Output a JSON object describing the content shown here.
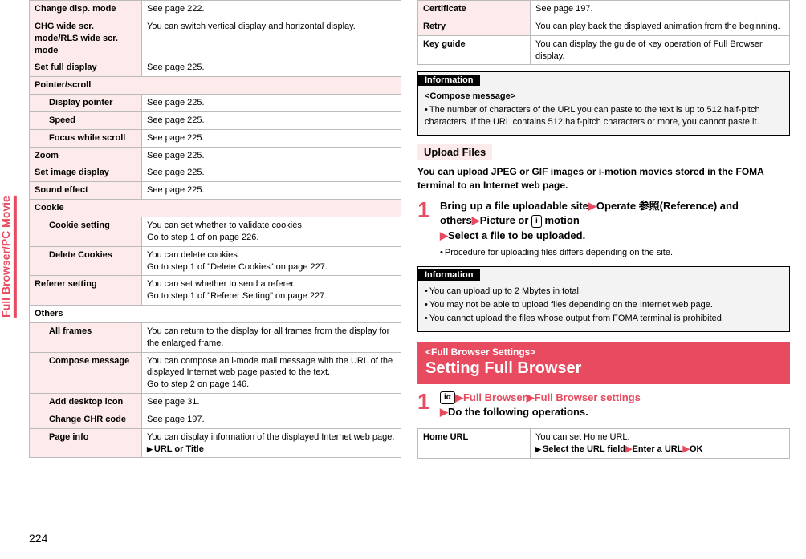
{
  "side_tab": "Full Browser/PC Movie",
  "page_number": "224",
  "left": {
    "rows": [
      {
        "label": "Change disp. mode",
        "value": "See page 222."
      },
      {
        "label": "CHG wide scr. mode/RLS wide scr. mode",
        "value": "You can switch vertical display and horizontal display."
      },
      {
        "label": "Set full display",
        "value": "See page 225."
      },
      {
        "section": "Pointer/scroll"
      },
      {
        "label": "Display pointer",
        "indent": true,
        "value": "See page 225."
      },
      {
        "label": "Speed",
        "indent": true,
        "value": "See page 225."
      },
      {
        "label": "Focus while scroll",
        "indent": true,
        "value": "See page 225."
      },
      {
        "label": "Zoom",
        "value": "See page 225."
      },
      {
        "label": "Set image display",
        "value": "See page 225."
      },
      {
        "label": "Sound effect",
        "value": "See page 225."
      },
      {
        "section": "Cookie"
      },
      {
        "label": "Cookie setting",
        "indent": true,
        "value": "You can set whether to validate cookies.\nGo to step 1 of on page 226."
      },
      {
        "label": "Delete Cookies",
        "indent": true,
        "value": "You can delete cookies.\nGo to step 1 of \"Delete Cookies\" on page 227."
      },
      {
        "label": "Referer setting",
        "value": "You can set whether to send a referer.\nGo to step 1 of \"Referer Setting\" on page 227."
      },
      {
        "section_plain": "Others"
      },
      {
        "label": "All frames",
        "indent": true,
        "value": "You can return to the display for all frames from the display for the enlarged frame."
      },
      {
        "label": "Compose message",
        "indent": true,
        "value": "You can compose an i-mode mail message with the URL of the displayed Internet web page pasted to the text.\nGo to step 2 on page 146."
      },
      {
        "label": "Add desktop icon",
        "indent": true,
        "value": "See page 31."
      },
      {
        "label": "Change CHR code",
        "indent": true,
        "value": "See page 197."
      },
      {
        "label": "Page info",
        "indent": true,
        "value": "You can display information of the displayed Internet web page.",
        "tri": "URL or Title"
      }
    ]
  },
  "right": {
    "top_rows": [
      {
        "label": "Certificate",
        "value": "See page 197."
      },
      {
        "label": "Retry",
        "value": "You can play back the displayed animation from the beginning."
      },
      {
        "label": "Key guide",
        "plain": true,
        "value": "You can display the guide of key operation of Full Browser display."
      }
    ],
    "info1": {
      "label": "Information",
      "heading": "<Compose message>",
      "text": "The number of characters of the URL you can paste to the text is up to 512 half-pitch characters. If the URL contains 512 half-pitch characters or more, you cannot paste it."
    },
    "upload": {
      "title": "Upload Files",
      "intro": "You can upload JPEG or GIF images or i-motion movies stored in the FOMA terminal to an Internet web page.",
      "step1_line1a": "Bring up a file uploadable site",
      "step1_line1b": "Operate 参照(Reference) and others",
      "step1_line1c": "Picture or",
      "step1_line1d": "motion",
      "step1_line2": "Select a file to be uploaded.",
      "step1_sub": "Procedure for uploading files differs depending on the site.",
      "motion_icon": "i"
    },
    "info2": {
      "label": "Information",
      "lines": [
        "You can upload up to 2 Mbytes in total.",
        "You may not be able to upload files depending on the Internet web page.",
        "You cannot upload the files whose output from FOMA terminal is prohibited."
      ]
    },
    "fullbar": {
      "small": "<Full Browser Settings>",
      "big": "Setting Full Browser"
    },
    "step_fb": {
      "icon": "iα",
      "part1": "Full Browser",
      "part2": "Full Browser settings",
      "line2": "Do the following operations."
    },
    "home_row": {
      "label": "Home URL",
      "value": "You can set Home URL.",
      "tri1": "Select the URL field",
      "tri2": "Enter a URL",
      "tri3": "OK"
    }
  }
}
